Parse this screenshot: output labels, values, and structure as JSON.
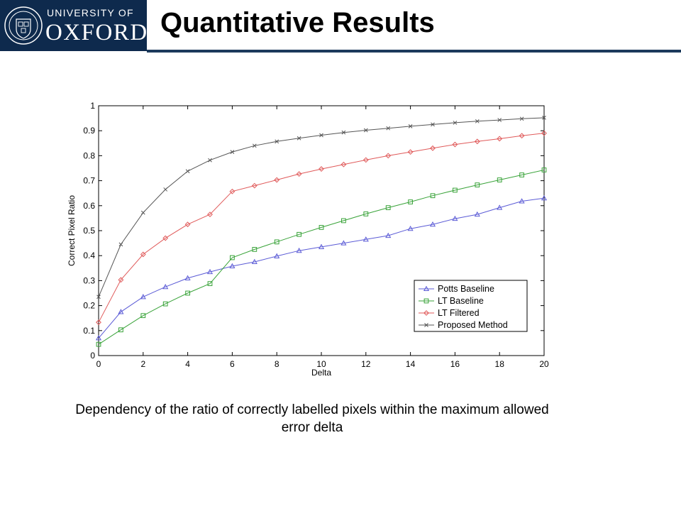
{
  "header": {
    "logo_top": "UNIVERSITY OF",
    "logo_main": "OXFORD",
    "title": "Quantitative Results",
    "brand_color": "#0e2a4d"
  },
  "caption": "Dependency of the ratio of correctly labelled pixels within the maximum allowed error delta",
  "chart_data": {
    "type": "line",
    "title": "",
    "xlabel": "Delta",
    "ylabel": "Correct Pixel Ratio",
    "xlim": [
      0,
      20
    ],
    "ylim": [
      0,
      1
    ],
    "xticks": [
      0,
      2,
      4,
      6,
      8,
      10,
      12,
      14,
      16,
      18,
      20
    ],
    "yticks": [
      0,
      0.1,
      0.2,
      0.3,
      0.4,
      0.5,
      0.6,
      0.7,
      0.8,
      0.9,
      1
    ],
    "legend_position": "bottom-right",
    "grid": false,
    "x": [
      0,
      1,
      2,
      3,
      4,
      5,
      6,
      7,
      8,
      9,
      10,
      11,
      12,
      13,
      14,
      15,
      16,
      17,
      18,
      19,
      20
    ],
    "series": [
      {
        "name": "Potts Baseline",
        "color": "#5b5bd6",
        "marker": "triangle",
        "values": [
          0.07,
          0.175,
          0.235,
          0.275,
          0.31,
          0.335,
          0.358,
          0.375,
          0.398,
          0.42,
          0.435,
          0.45,
          0.465,
          0.48,
          0.508,
          0.525,
          0.548,
          0.565,
          0.592,
          0.618,
          0.63
        ]
      },
      {
        "name": "LT Baseline",
        "color": "#39a339",
        "marker": "square",
        "values": [
          0.045,
          0.103,
          0.16,
          0.207,
          0.25,
          0.288,
          0.392,
          0.425,
          0.455,
          0.485,
          0.513,
          0.54,
          0.567,
          0.592,
          0.615,
          0.64,
          0.662,
          0.683,
          0.703,
          0.723,
          0.743
        ]
      },
      {
        "name": "LT Filtered",
        "color": "#e05a5a",
        "marker": "diamond",
        "values": [
          0.133,
          0.303,
          0.405,
          0.47,
          0.525,
          0.565,
          0.657,
          0.68,
          0.703,
          0.727,
          0.747,
          0.765,
          0.783,
          0.8,
          0.815,
          0.83,
          0.845,
          0.857,
          0.868,
          0.88,
          0.89
        ]
      },
      {
        "name": "Proposed Method",
        "color": "#555555",
        "marker": "x",
        "values": [
          0.235,
          0.445,
          0.572,
          0.665,
          0.738,
          0.782,
          0.815,
          0.84,
          0.857,
          0.87,
          0.882,
          0.893,
          0.902,
          0.91,
          0.918,
          0.925,
          0.932,
          0.938,
          0.943,
          0.948,
          0.952
        ]
      }
    ]
  }
}
